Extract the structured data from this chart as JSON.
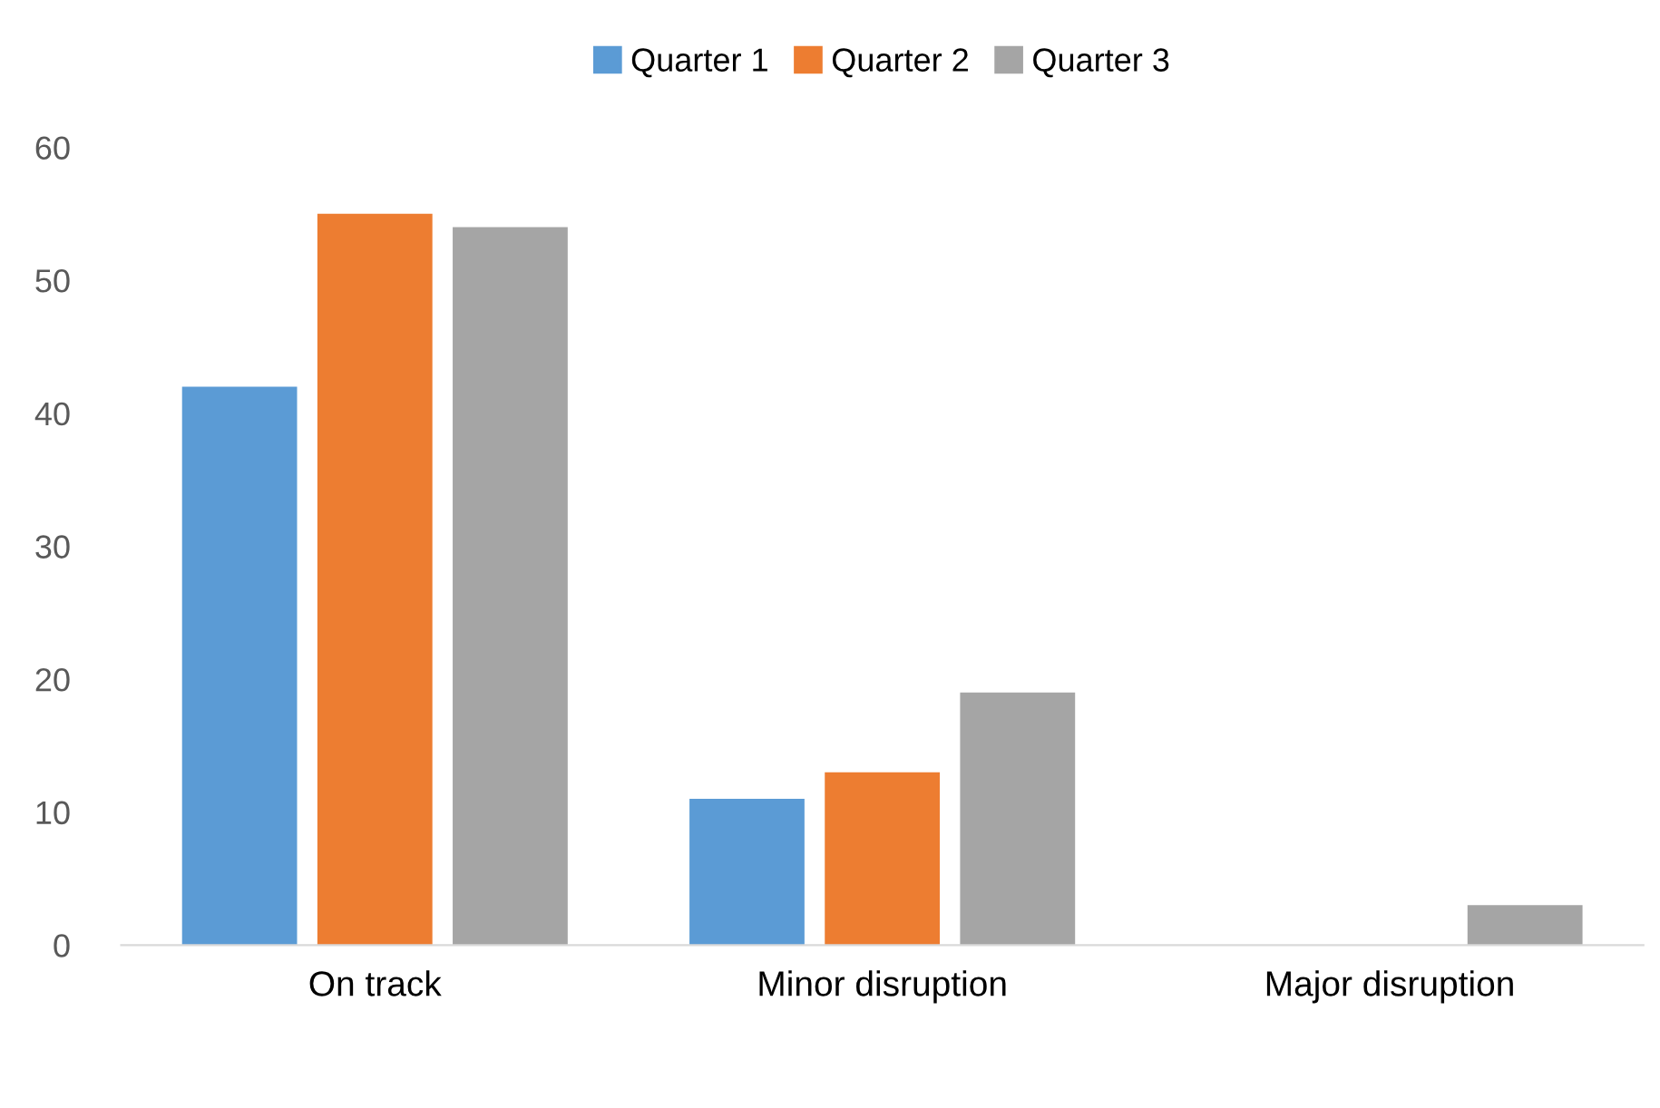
{
  "chart_data": {
    "type": "bar",
    "categories": [
      "On track",
      "Minor disruption",
      "Major disruption"
    ],
    "series": [
      {
        "name": "Quarter 1",
        "color": "#5b9bd5",
        "values": [
          42,
          11,
          0
        ]
      },
      {
        "name": "Quarter 2",
        "color": "#ed7d31",
        "values": [
          55,
          13,
          0
        ]
      },
      {
        "name": "Quarter 3",
        "color": "#a5a5a5",
        "values": [
          54,
          19,
          3
        ]
      }
    ],
    "ylim": [
      0,
      60
    ],
    "yticks": [
      0,
      10,
      20,
      30,
      40,
      50,
      60
    ],
    "grid": false,
    "legend": "top"
  }
}
